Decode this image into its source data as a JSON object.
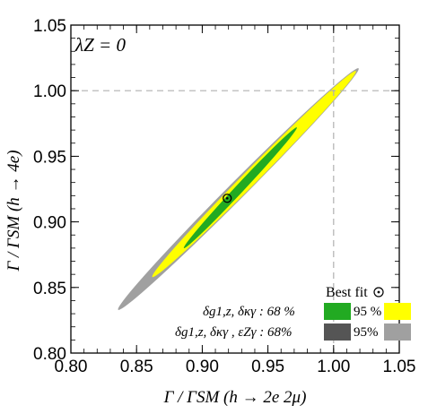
{
  "chart_data": {
    "type": "contour",
    "annotation": "λZ = 0",
    "xlabel": "Γ / ΓSM (h → 2e 2μ)",
    "ylabel": "Γ / ΓSM (h → 4e)",
    "xlim": [
      0.8,
      1.05
    ],
    "ylim": [
      0.8,
      1.05
    ],
    "x_ticks": [
      0.8,
      0.85,
      0.9,
      0.95,
      1.0,
      1.05
    ],
    "y_ticks": [
      0.8,
      0.85,
      0.9,
      0.95,
      1.0,
      1.05
    ],
    "x_tick_labels": [
      "0.80",
      "0.85",
      "0.90",
      "0.95",
      "1.00",
      "1.05"
    ],
    "y_tick_labels": [
      "0.80",
      "0.85",
      "0.90",
      "0.95",
      "1.00",
      "1.05"
    ],
    "reference_lines": {
      "x": 1.0,
      "y": 1.0,
      "style": "dashed",
      "color": "#b0b0b0"
    },
    "grid": false,
    "regions": [
      {
        "name": "δg1,z, δκγ, εZγ : 95%",
        "color": "#a0a0a0",
        "ellipse": {
          "cx": 0.927,
          "cy": 0.925,
          "major_from": [
            0.836,
            0.833
          ],
          "major_to": [
            1.019,
            1.017
          ],
          "minor_half_width": 0.0065
        }
      },
      {
        "name": "δg1,z, δκγ, εZγ : 68%",
        "color": "#555555",
        "ellipse": {
          "cx": 0.922,
          "cy": 0.918,
          "major_from": [
            0.868,
            0.863
          ],
          "major_to": [
            0.976,
            0.973
          ],
          "minor_half_width": 0.0035
        }
      },
      {
        "name": "δg1,z, δκγ : 95 %",
        "color": "#ffff00",
        "ellipse": {
          "cx": 0.94,
          "cy": 0.936,
          "major_from": [
            0.862,
            0.858
          ],
          "major_to": [
            1.017,
            1.015
          ],
          "minor_half_width": 0.0055
        }
      },
      {
        "name": "δg1,z, δκγ : 68 %",
        "color": "#22aa22",
        "ellipse": {
          "cx": 0.929,
          "cy": 0.926,
          "major_from": [
            0.886,
            0.88
          ],
          "major_to": [
            0.972,
            0.972
          ],
          "minor_half_width": 0.0032
        }
      }
    ],
    "best_fit": {
      "label": "Best fit",
      "x": 0.919,
      "y": 0.918
    },
    "legend": {
      "placement": "bottom-right",
      "row1_label": "δg1,z, δκγ : 68 %",
      "row1_label2": "95 %",
      "row2_label": "δg1,z, δκγ , εZγ : 68%",
      "row2_label2": "95%"
    }
  }
}
